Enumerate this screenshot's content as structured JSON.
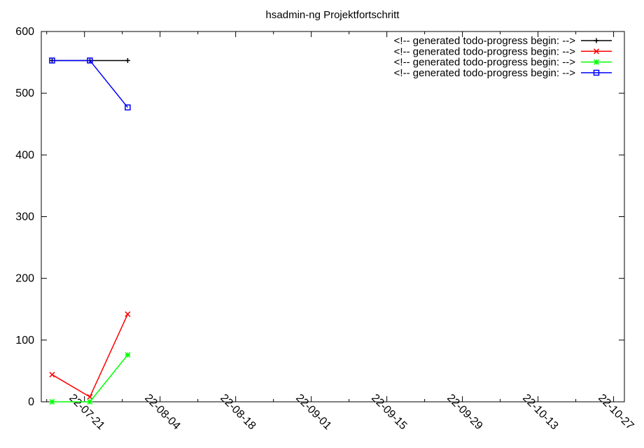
{
  "chart_data": {
    "type": "line",
    "title": "hsadmin-ng Projektfortschritt",
    "xlabel": "",
    "ylabel": "",
    "x": [
      "2022-07-15",
      "2022-07-22",
      "2022-07-29"
    ],
    "xlim": [
      "2022-07-13",
      "2022-10-29"
    ],
    "ylim": [
      0,
      600
    ],
    "y_ticks": [
      0,
      100,
      200,
      300,
      400,
      500,
      600
    ],
    "x_ticks": [
      {
        "date": "2022-07-21",
        "label": "22-07-21"
      },
      {
        "date": "2022-08-04",
        "label": "22-08-04"
      },
      {
        "date": "2022-08-18",
        "label": "22-08-18"
      },
      {
        "date": "2022-09-01",
        "label": "22-09-01"
      },
      {
        "date": "2022-09-15",
        "label": "22-09-15"
      },
      {
        "date": "2022-09-29",
        "label": "22-09-29"
      },
      {
        "date": "2022-10-13",
        "label": "22-10-13"
      },
      {
        "date": "2022-10-27",
        "label": "22-10-27"
      }
    ],
    "grid": false,
    "legend_position": "top-right",
    "series": [
      {
        "name": "<!-- generated todo-progress begin: -->",
        "color": "#000000",
        "marker": "plus",
        "values": [
          553,
          553,
          553
        ]
      },
      {
        "name": "<!-- generated todo-progress begin: -->",
        "color": "#ff0000",
        "marker": "cross",
        "values": [
          44,
          8,
          142
        ]
      },
      {
        "name": "<!-- generated todo-progress begin: -->",
        "color": "#00ff00",
        "marker": "star",
        "values": [
          0,
          0,
          76
        ]
      },
      {
        "name": "<!-- generated todo-progress begin: -->",
        "color": "#0000ff",
        "marker": "square",
        "values": [
          553,
          553,
          477
        ]
      }
    ]
  }
}
